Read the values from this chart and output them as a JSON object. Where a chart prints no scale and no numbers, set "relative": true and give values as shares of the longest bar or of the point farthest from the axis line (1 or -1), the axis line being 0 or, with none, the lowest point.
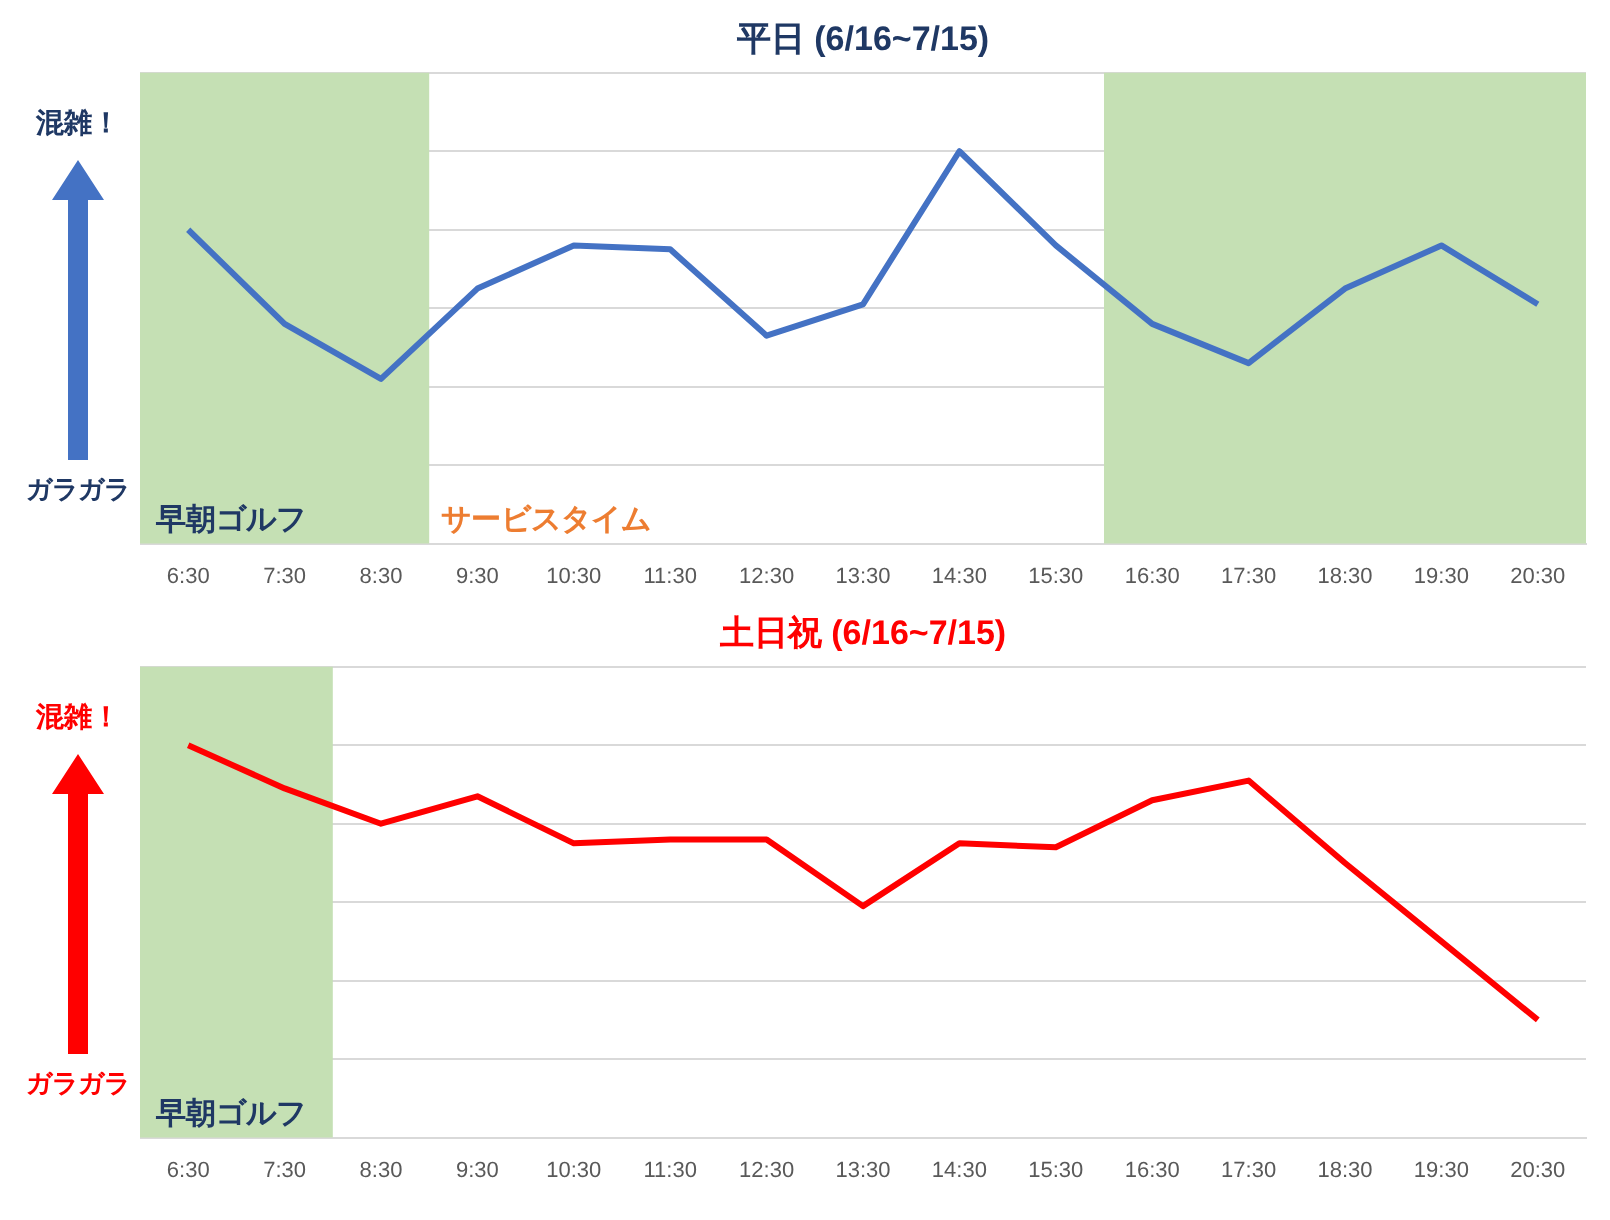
{
  "chart_data": [
    {
      "type": "line",
      "title": "平日 (6/16~7/15)",
      "relative": true,
      "grid": "y",
      "legend": false,
      "marker": "none",
      "line_style": "solid",
      "categories": [
        "6:30",
        "7:30",
        "8:30",
        "9:30",
        "10:30",
        "11:30",
        "12:30",
        "13:30",
        "14:30",
        "15:30",
        "16:30",
        "17:30",
        "18:30",
        "19:30",
        "20:30"
      ],
      "series": [
        {
          "color": "#4472c4",
          "values": [
            0.8,
            0.56,
            0.42,
            0.65,
            0.76,
            0.75,
            0.53,
            0.61,
            1,
            0.76,
            0.56,
            0.46,
            0.65,
            0.76,
            0.61
          ]
        }
      ],
      "bands": [
        {
          "axis": "x",
          "from": "6:30",
          "to": "8:30",
          "label": "早朝ゴルフ",
          "color": "#c5e0b4"
        },
        {
          "axis": "x",
          "from": "16:30",
          "to": "20:30",
          "color": "#c5e0b4"
        }
      ],
      "annotations": [
        "混雑！",
        "ガラガラ",
        "サービスタイム"
      ]
    },
    {
      "type": "line",
      "title": "土日祝 (6/16~7/15)",
      "relative": true,
      "grid": "y",
      "legend": false,
      "marker": "none",
      "line_style": "solid",
      "categories": [
        "6:30",
        "7:30",
        "8:30",
        "9:30",
        "10:30",
        "11:30",
        "12:30",
        "13:30",
        "14:30",
        "15:30",
        "16:30",
        "17:30",
        "18:30",
        "19:30",
        "20:30"
      ],
      "series": [
        {
          "color": "#ff0000",
          "values": [
            1,
            0.89,
            0.8,
            0.87,
            0.75,
            0.76,
            0.76,
            0.59,
            0.75,
            0.74,
            0.86,
            0.91,
            0.7,
            0.5,
            0.3
          ]
        }
      ],
      "bands": [
        {
          "axis": "x",
          "from": "6:30",
          "to": "7:30",
          "label": "早朝ゴルフ",
          "color": "#c5e0b4"
        }
      ],
      "annotations": [
        "混雑！",
        "ガラガラ"
      ]
    }
  ]
}
